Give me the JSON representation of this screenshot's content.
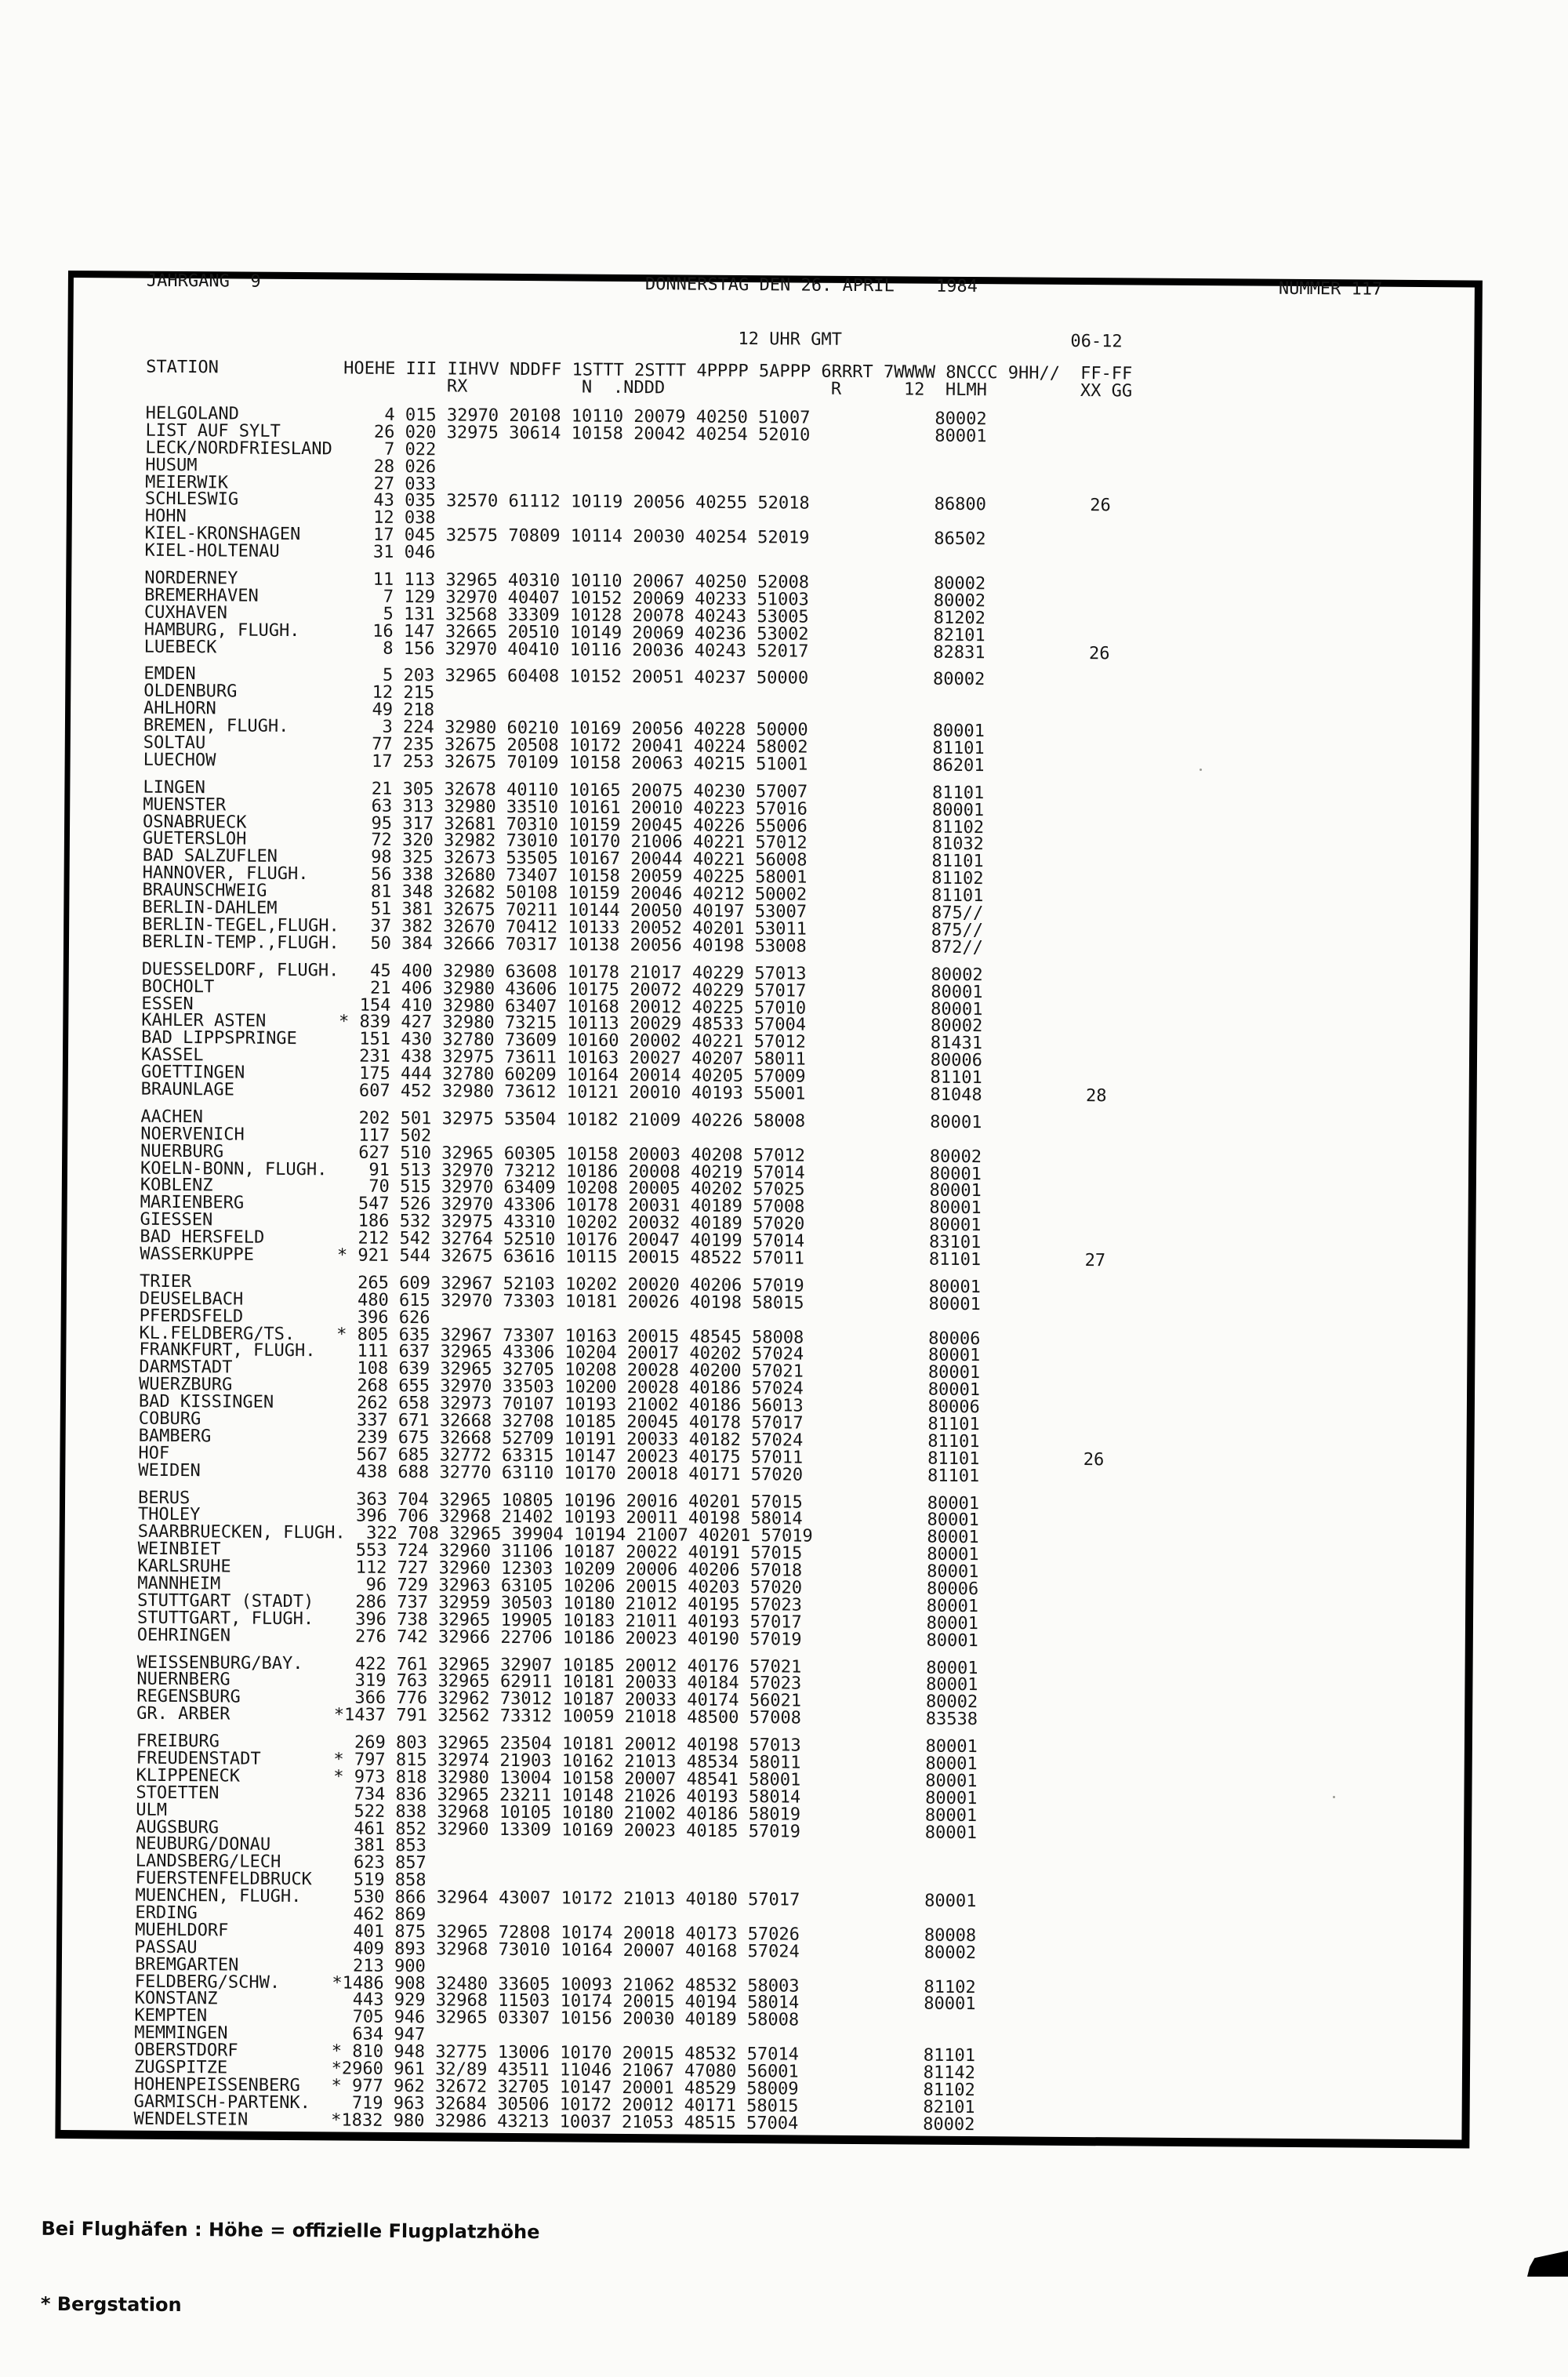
{
  "masthead": {
    "volume": "JAHRGANG  9",
    "date": "DONNERSTAG DEN 26. APRIL",
    "year": "1984",
    "number": "NUMMER 117",
    "time": "12 UHR GMT",
    "period": "06-12"
  },
  "columns": {
    "station": "STATION",
    "line1": "HOEHE III IIHVV NDDFF 1STTT 2STTT 4PPPP 5APPP 6RRRT 7WWWW 8NCCC 9HH//",
    "ff": "FF-FF",
    "sub": {
      "rx": "RX",
      "n": "N",
      "nddd": ".NDDD",
      "r": "R",
      "h12": "12",
      "hlmh": "HLMH",
      "xxgg": "XX GG"
    }
  },
  "blocks": [
    [
      {
        "station": "HELGOLAND",
        "hoehe": "4",
        "iii": "015",
        "obs": "32970 20108 10110 20079 40250 51007",
        "nccc": "80002"
      },
      {
        "station": "LIST AUF SYLT",
        "hoehe": "26",
        "iii": "020",
        "obs": "32975 30614 10158 20042 40254 52010",
        "nccc": "80001"
      },
      {
        "station": "LECK/NORDFRIESLAND",
        "hoehe": "7",
        "iii": "022"
      },
      {
        "station": "HUSUM",
        "hoehe": "28",
        "iii": "026"
      },
      {
        "station": "MEIERWIK",
        "hoehe": "27",
        "iii": "033"
      },
      {
        "station": "SCHLESWIG",
        "hoehe": "43",
        "iii": "035",
        "obs": "32570 61112 10119 20056 40255 52018",
        "nccc": "86800",
        "ff": "26"
      },
      {
        "station": "HOHN",
        "hoehe": "12",
        "iii": "038"
      },
      {
        "station": "KIEL-KRONSHAGEN",
        "hoehe": "17",
        "iii": "045",
        "obs": "32575 70809 10114 20030 40254 52019",
        "nccc": "86502"
      },
      {
        "station": "KIEL-HOLTENAU",
        "hoehe": "31",
        "iii": "046"
      }
    ],
    [
      {
        "station": "NORDERNEY",
        "hoehe": "11",
        "iii": "113",
        "obs": "32965 40310 10110 20067 40250 52008",
        "nccc": "80002"
      },
      {
        "station": "BREMERHAVEN",
        "hoehe": "7",
        "iii": "129",
        "obs": "32970 40407 10152 20069 40233 51003",
        "nccc": "80002"
      },
      {
        "station": "CUXHAVEN",
        "hoehe": "5",
        "iii": "131",
        "obs": "32568 33309 10128 20078 40243 53005",
        "nccc": "81202"
      },
      {
        "station": "HAMBURG, FLUGH.",
        "hoehe": "16",
        "iii": "147",
        "obs": "32665 20510 10149 20069 40236 53002",
        "nccc": "82101"
      },
      {
        "station": "LUEBECK",
        "hoehe": "8",
        "iii": "156",
        "obs": "32970 40410 10116 20036 40243 52017",
        "nccc": "82831",
        "ff": "26"
      }
    ],
    [
      {
        "station": "EMDEN",
        "hoehe": "5",
        "iii": "203",
        "obs": "32965 60408 10152 20051 40237 50000",
        "nccc": "80002"
      },
      {
        "station": "OLDENBURG",
        "hoehe": "12",
        "iii": "215"
      },
      {
        "station": "AHLHORN",
        "hoehe": "49",
        "iii": "218"
      },
      {
        "station": "BREMEN, FLUGH.",
        "hoehe": "3",
        "iii": "224",
        "obs": "32980 60210 10169 20056 40228 50000",
        "nccc": "80001"
      },
      {
        "station": "SOLTAU",
        "hoehe": "77",
        "iii": "235",
        "obs": "32675 20508 10172 20041 40224 58002",
        "nccc": "81101"
      },
      {
        "station": "LUECHOW",
        "hoehe": "17",
        "iii": "253",
        "obs": "32675 70109 10158 20063 40215 51001",
        "nccc": "86201"
      }
    ],
    [
      {
        "station": "LINGEN",
        "hoehe": "21",
        "iii": "305",
        "obs": "32678 40110 10165 20075 40230 57007",
        "nccc": "81101"
      },
      {
        "station": "MUENSTER",
        "hoehe": "63",
        "iii": "313",
        "obs": "32980 33510 10161 20010 40223 57016",
        "nccc": "80001"
      },
      {
        "station": "OSNABRUECK",
        "hoehe": "95",
        "iii": "317",
        "obs": "32681 70310 10159 20045 40226 55006",
        "nccc": "81102"
      },
      {
        "station": "GUETERSLOH",
        "hoehe": "72",
        "iii": "320",
        "obs": "32982 73010 10170 21006 40221 57012",
        "nccc": "81032"
      },
      {
        "station": "BAD SALZUFLEN",
        "hoehe": "98",
        "iii": "325",
        "obs": "32673 53505 10167 20044 40221 56008",
        "nccc": "81101"
      },
      {
        "station": "HANNOVER, FLUGH.",
        "hoehe": "56",
        "iii": "338",
        "obs": "32680 73407 10158 20059 40225 58001",
        "nccc": "81102"
      },
      {
        "station": "BRAUNSCHWEIG",
        "hoehe": "81",
        "iii": "348",
        "obs": "32682 50108 10159 20046 40212 50002",
        "nccc": "81101"
      },
      {
        "station": "BERLIN-DAHLEM",
        "hoehe": "51",
        "iii": "381",
        "obs": "32675 70211 10144 20050 40197 53007",
        "nccc": "875//"
      },
      {
        "station": "BERLIN-TEGEL,FLUGH.",
        "hoehe": "37",
        "iii": "382",
        "obs": "32670 70412 10133 20052 40201 53011",
        "nccc": "875//"
      },
      {
        "station": "BERLIN-TEMP.,FLUGH.",
        "hoehe": "50",
        "iii": "384",
        "obs": "32666 70317 10138 20056 40198 53008",
        "nccc": "872//"
      }
    ],
    [
      {
        "station": "DUESSELDORF, FLUGH.",
        "hoehe": "45",
        "iii": "400",
        "obs": "32980 63608 10178 21017 40229 57013",
        "nccc": "80002"
      },
      {
        "station": "BOCHOLT",
        "hoehe": "21",
        "iii": "406",
        "obs": "32980 43606 10175 20072 40229 57017",
        "nccc": "80001"
      },
      {
        "station": "ESSEN",
        "hoehe": "154",
        "iii": "410",
        "obs": "32980 63407 10168 20012 40225 57010",
        "nccc": "80001"
      },
      {
        "station": "KAHLER ASTEN",
        "berg": true,
        "hoehe": "839",
        "iii": "427",
        "obs": "32980 73215 10113 20029 48533 57004",
        "nccc": "80002"
      },
      {
        "station": "BAD LIPPSPRINGE",
        "hoehe": "151",
        "iii": "430",
        "obs": "32780 73609 10160 20002 40221 57012",
        "nccc": "81431"
      },
      {
        "station": "KASSEL",
        "hoehe": "231",
        "iii": "438",
        "obs": "32975 73611 10163 20027 40207 58011",
        "nccc": "80006"
      },
      {
        "station": "GOETTINGEN",
        "hoehe": "175",
        "iii": "444",
        "obs": "32780 60209 10164 20014 40205 57009",
        "nccc": "81101"
      },
      {
        "station": "BRAUNLAGE",
        "hoehe": "607",
        "iii": "452",
        "obs": "32980 73612 10121 20010 40193 55001",
        "nccc": "81048",
        "ff": "28"
      }
    ],
    [
      {
        "station": "AACHEN",
        "hoehe": "202",
        "iii": "501",
        "obs": "32975 53504 10182 21009 40226 58008",
        "nccc": "80001"
      },
      {
        "station": "NOERVENICH",
        "hoehe": "117",
        "iii": "502"
      },
      {
        "station": "NUERBURG",
        "hoehe": "627",
        "iii": "510",
        "obs": "32965 60305 10158 20003 40208 57012",
        "nccc": "80002"
      },
      {
        "station": "KOELN-BONN, FLUGH.",
        "hoehe": "91",
        "iii": "513",
        "obs": "32970 73212 10186 20008 40219 57014",
        "nccc": "80001"
      },
      {
        "station": "KOBLENZ",
        "hoehe": "70",
        "iii": "515",
        "obs": "32970 63409 10208 20005 40202 57025",
        "nccc": "80001"
      },
      {
        "station": "MARIENBERG",
        "hoehe": "547",
        "iii": "526",
        "obs": "32970 43306 10178 20031 40189 57008",
        "nccc": "80001"
      },
      {
        "station": "GIESSEN",
        "hoehe": "186",
        "iii": "532",
        "obs": "32975 43310 10202 20032 40189 57020",
        "nccc": "80001"
      },
      {
        "station": "BAD HERSFELD",
        "hoehe": "212",
        "iii": "542",
        "obs": "32764 52510 10176 20047 40199 57014",
        "nccc": "83101"
      },
      {
        "station": "WASSERKUPPE",
        "berg": true,
        "hoehe": "921",
        "iii": "544",
        "obs": "32675 63616 10115 20015 48522 57011",
        "nccc": "81101",
        "ff": "27"
      }
    ],
    [
      {
        "station": "TRIER",
        "hoehe": "265",
        "iii": "609",
        "obs": "32967 52103 10202 20020 40206 57019",
        "nccc": "80001"
      },
      {
        "station": "DEUSELBACH",
        "hoehe": "480",
        "iii": "615",
        "obs": "32970 73303 10181 20026 40198 58015",
        "nccc": "80001"
      },
      {
        "station": "PFERDSFELD",
        "hoehe": "396",
        "iii": "626"
      },
      {
        "station": "KL.FELDBERG/TS.",
        "berg": true,
        "hoehe": "805",
        "iii": "635",
        "obs": "32967 73307 10163 20015 48545 58008",
        "nccc": "80006"
      },
      {
        "station": "FRANKFURT, FLUGH.",
        "hoehe": "111",
        "iii": "637",
        "obs": "32965 43306 10204 20017 40202 57024",
        "nccc": "80001"
      },
      {
        "station": "DARMSTADT",
        "hoehe": "108",
        "iii": "639",
        "obs": "32965 32705 10208 20028 40200 57021",
        "nccc": "80001"
      },
      {
        "station": "WUERZBURG",
        "hoehe": "268",
        "iii": "655",
        "obs": "32970 33503 10200 20028 40186 57024",
        "nccc": "80001"
      },
      {
        "station": "BAD KISSINGEN",
        "hoehe": "262",
        "iii": "658",
        "obs": "32973 70107 10193 21002 40186 56013",
        "nccc": "80006"
      },
      {
        "station": "COBURG",
        "hoehe": "337",
        "iii": "671",
        "obs": "32668 32708 10185 20045 40178 57017",
        "nccc": "81101"
      },
      {
        "station": "BAMBERG",
        "hoehe": "239",
        "iii": "675",
        "obs": "32668 52709 10191 20033 40182 57024",
        "nccc": "81101"
      },
      {
        "station": "HOF",
        "hoehe": "567",
        "iii": "685",
        "obs": "32772 63315 10147 20023 40175 57011",
        "nccc": "81101",
        "ff": "26"
      },
      {
        "station": "WEIDEN",
        "hoehe": "438",
        "iii": "688",
        "obs": "32770 63110 10170 20018 40171 57020",
        "nccc": "81101"
      }
    ],
    [
      {
        "station": "BERUS",
        "hoehe": "363",
        "iii": "704",
        "obs": "32965 10805 10196 20016 40201 57015",
        "nccc": "80001"
      },
      {
        "station": "THOLEY",
        "hoehe": "396",
        "iii": "706",
        "obs": "32968 21402 10193 20011 40198 58014",
        "nccc": "80001"
      },
      {
        "station": "SAARBRUECKEN, FLUGH.",
        "hoehe": "322",
        "iii": "708",
        "obs": "32965 39904 10194 21007 40201 57019",
        "nccc": "80001"
      },
      {
        "station": "WEINBIET",
        "hoehe": "553",
        "iii": "724",
        "obs": "32960 31106 10187 20022 40191 57015",
        "nccc": "80001"
      },
      {
        "station": "KARLSRUHE",
        "hoehe": "112",
        "iii": "727",
        "obs": "32960 12303 10209 20006 40206 57018",
        "nccc": "80001"
      },
      {
        "station": "MANNHEIM",
        "hoehe": "96",
        "iii": "729",
        "obs": "32963 63105 10206 20015 40203 57020",
        "nccc": "80006"
      },
      {
        "station": "STUTTGART (STADT)",
        "hoehe": "286",
        "iii": "737",
        "obs": "32959 30503 10180 21012 40195 57023",
        "nccc": "80001"
      },
      {
        "station": "STUTTGART, FLUGH.",
        "hoehe": "396",
        "iii": "738",
        "obs": "32965 19905 10183 21011 40193 57017",
        "nccc": "80001"
      },
      {
        "station": "OEHRINGEN",
        "hoehe": "276",
        "iii": "742",
        "obs": "32966 22706 10186 20023 40190 57019",
        "nccc": "80001"
      }
    ],
    [
      {
        "station": "WEISSENBURG/BAY.",
        "hoehe": "422",
        "iii": "761",
        "obs": "32965 32907 10185 20012 40176 57021",
        "nccc": "80001"
      },
      {
        "station": "NUERNBERG",
        "hoehe": "319",
        "iii": "763",
        "obs": "32965 62911 10181 20033 40184 57023",
        "nccc": "80001"
      },
      {
        "station": "REGENSBURG",
        "hoehe": "366",
        "iii": "776",
        "obs": "32962 73012 10187 20033 40174 56021",
        "nccc": "80002"
      },
      {
        "station": "GR. ARBER",
        "berg": true,
        "hoehe": "1437",
        "iii": "791",
        "obs": "32562 73312 10059 21018 48500 57008",
        "nccc": "83538"
      }
    ],
    [
      {
        "station": "FREIBURG",
        "hoehe": "269",
        "iii": "803",
        "obs": "32965 23504 10181 20012 40198 57013",
        "nccc": "80001"
      },
      {
        "station": "FREUDENSTADT",
        "berg": true,
        "hoehe": "797",
        "iii": "815",
        "obs": "32974 21903 10162 21013 48534 58011",
        "nccc": "80001"
      },
      {
        "station": "KLIPPENECK",
        "berg": true,
        "hoehe": "973",
        "iii": "818",
        "obs": "32980 13004 10158 20007 48541 58001",
        "nccc": "80001"
      },
      {
        "station": "STOETTEN",
        "hoehe": "734",
        "iii": "836",
        "obs": "32965 23211 10148 21026 40193 58014",
        "nccc": "80001"
      },
      {
        "station": "ULM",
        "hoehe": "522",
        "iii": "838",
        "obs": "32968 10105 10180 21002 40186 58019",
        "nccc": "80001"
      },
      {
        "station": "AUGSBURG",
        "hoehe": "461",
        "iii": "852",
        "obs": "32960 13309 10169 20023 40185 57019",
        "nccc": "80001"
      },
      {
        "station": "NEUBURG/DONAU",
        "hoehe": "381",
        "iii": "853"
      },
      {
        "station": "LANDSBERG/LECH",
        "hoehe": "623",
        "iii": "857"
      },
      {
        "station": "FUERSTENFELDBRUCK",
        "hoehe": "519",
        "iii": "858"
      },
      {
        "station": "MUENCHEN, FLUGH.",
        "hoehe": "530",
        "iii": "866",
        "obs": "32964 43007 10172 21013 40180 57017",
        "nccc": "80001"
      },
      {
        "station": "ERDING",
        "hoehe": "462",
        "iii": "869"
      },
      {
        "station": "MUEHLDORF",
        "hoehe": "401",
        "iii": "875",
        "obs": "32965 72808 10174 20018 40173 57026",
        "nccc": "80008"
      },
      {
        "station": "PASSAU",
        "hoehe": "409",
        "iii": "893",
        "obs": "32968 73010 10164 20007 40168 57024",
        "nccc": "80002"
      },
      {
        "station": "BREMGARTEN",
        "hoehe": "213",
        "iii": "900"
      },
      {
        "station": "FELDBERG/SCHW.",
        "berg": true,
        "hoehe": "1486",
        "iii": "908",
        "obs": "32480 33605 10093 21062 48532 58003",
        "nccc": "81102"
      },
      {
        "station": "KONSTANZ",
        "hoehe": "443",
        "iii": "929",
        "obs": "32968 11503 10174 20015 40194 58014",
        "nccc": "80001"
      },
      {
        "station": "KEMPTEN",
        "hoehe": "705",
        "iii": "946",
        "obs": "32965 03307 10156 20030 40189 58008"
      },
      {
        "station": "MEMMINGEN",
        "hoehe": "634",
        "iii": "947"
      },
      {
        "station": "OBERSTDORF",
        "berg": true,
        "hoehe": "810",
        "iii": "948",
        "obs": "32775 13006 10170 20015 48532 57014",
        "nccc": "81101"
      },
      {
        "station": "ZUGSPITZE",
        "berg": true,
        "hoehe": "2960",
        "iii": "961",
        "obs": "32/89 43511 11046 21067 47080 56001",
        "nccc": "81142"
      },
      {
        "station": "HOHENPEISSENBERG",
        "berg": true,
        "hoehe": "977",
        "iii": "962",
        "obs": "32672 32705 10147 20001 48529 58009",
        "nccc": "81102"
      },
      {
        "station": "GARMISCH-PARTENK.",
        "hoehe": "719",
        "iii": "963",
        "obs": "32684 30506 10172 20012 40171 58015",
        "nccc": "82101"
      },
      {
        "station": "WENDELSTEIN",
        "berg": true,
        "hoehe": "1832",
        "iii": "980",
        "obs": "32986 43213 10037 21053 48515 57004",
        "nccc": "80002"
      }
    ]
  ],
  "footer": {
    "line1": "Bei Flughäfen : Höhe = offizielle Flugplatzhöhe",
    "line2": "* Bergstation"
  }
}
